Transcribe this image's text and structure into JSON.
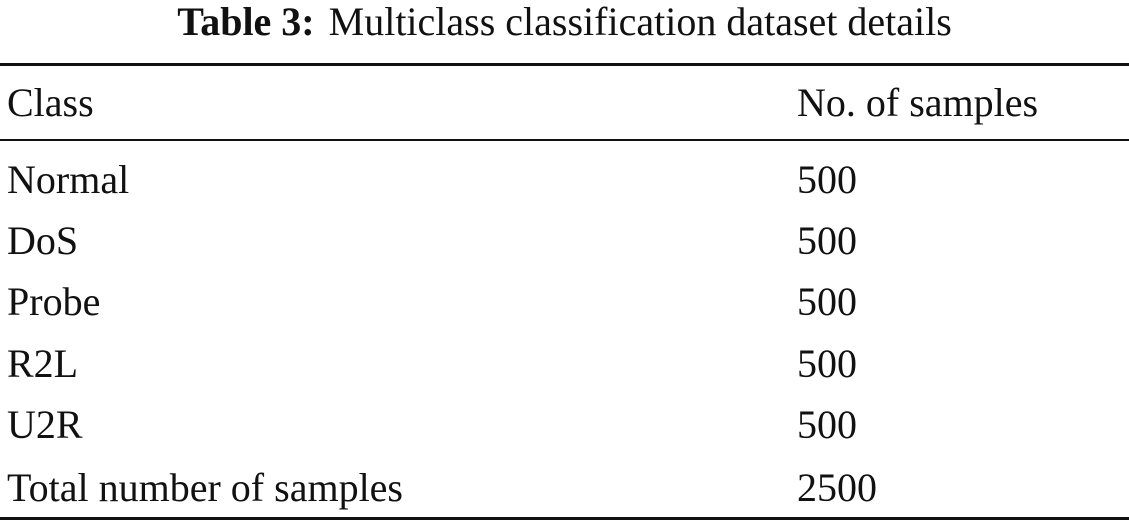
{
  "caption": {
    "label": "Table 3:",
    "text": "Multiclass classification dataset details"
  },
  "table": {
    "header": [
      "Class",
      "No. of samples"
    ],
    "rows": [
      [
        "Normal",
        500
      ],
      [
        "DoS",
        500
      ],
      [
        "Probe",
        500
      ],
      [
        "R2L",
        500
      ],
      [
        "U2R",
        500
      ],
      [
        "Total number of samples",
        2500
      ]
    ]
  }
}
